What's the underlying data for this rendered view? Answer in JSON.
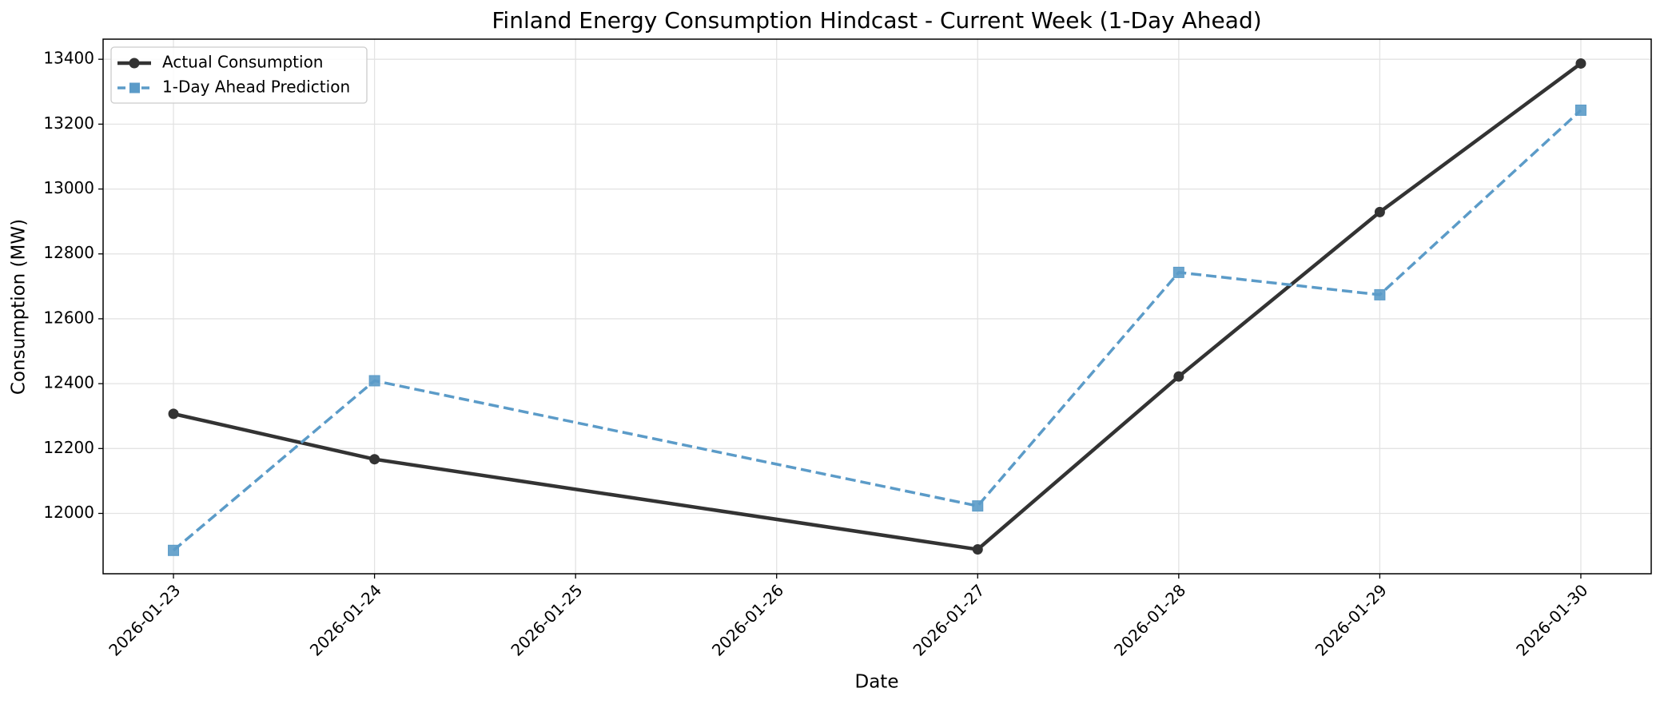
{
  "chart_data": {
    "type": "line",
    "title": "Finland Energy Consumption Hindcast - Current Week (1-Day Ahead)",
    "xlabel": "Date",
    "ylabel": "Consumption (MW)",
    "x": [
      "2026-01-23",
      "2026-01-24",
      "2026-01-27",
      "2026-01-28",
      "2026-01-29",
      "2026-01-30"
    ],
    "series": [
      {
        "name": "Actual Consumption",
        "color": "#333333",
        "linestyle": "solid",
        "marker": "circle",
        "values": [
          12307,
          12167,
          11889,
          12422,
          12929,
          13387
        ]
      },
      {
        "name": "1-Day Ahead Prediction",
        "color": "#5b9bc8",
        "linestyle": "dashed",
        "marker": "square",
        "values": [
          11886,
          12409,
          12023,
          12743,
          12674,
          13243
        ]
      }
    ],
    "xticks": [
      "2026-01-23",
      "2026-01-24",
      "2026-01-25",
      "2026-01-26",
      "2026-01-27",
      "2026-01-28",
      "2026-01-29",
      "2026-01-30"
    ],
    "ylim": [
      11814,
      13462
    ],
    "yticks": [
      12000,
      12200,
      12400,
      12600,
      12800,
      13000,
      13200,
      13400
    ],
    "grid": true,
    "legend": "upper left"
  }
}
